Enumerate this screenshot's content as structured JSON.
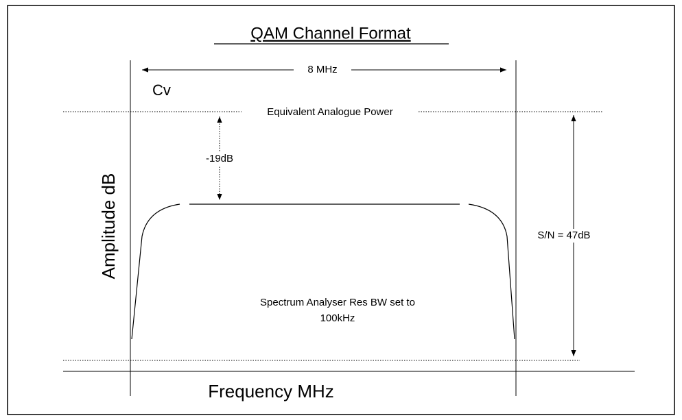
{
  "title": "QAM Channel Format",
  "bandwidth_label": "8 MHz",
  "carrier_label": "Cv",
  "reference_label": "Equivalent Analogue Power",
  "offset_label": "-19dB",
  "y_axis_label": "Amplitude dB",
  "snr_label": "S/N = 47dB",
  "note": [
    "Spectrum Analyser Res BW set to",
    "100kHz"
  ],
  "x_axis_label": "Frequency MHz"
}
